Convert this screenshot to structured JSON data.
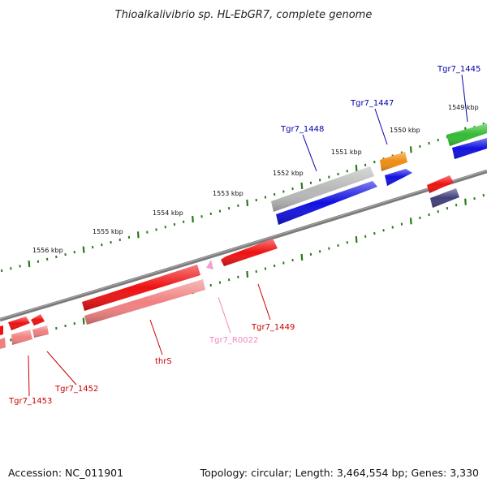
{
  "title": "Thioalkalivibrio sp. HL-EbGR7, complete genome",
  "footer": {
    "accession": "Accession: NC_011901",
    "summary": "Topology: circular; Length: 3,464,554 bp; Genes: 3,330"
  },
  "ticks": [
    {
      "label": "1549 kbp"
    },
    {
      "label": "1550 kbp"
    },
    {
      "label": "1551 kbp"
    },
    {
      "label": "1552 kbp"
    },
    {
      "label": "1553 kbp"
    },
    {
      "label": "1554 kbp"
    },
    {
      "label": "1555 kbp"
    },
    {
      "label": "1556 kbp"
    }
  ],
  "genes": [
    {
      "id": "Tgr7_1445",
      "label": "Tgr7_1445",
      "color": "#0000aa"
    },
    {
      "id": "Tgr7_1447",
      "label": "Tgr7_1447",
      "color": "#0000aa"
    },
    {
      "id": "Tgr7_1448",
      "label": "Tgr7_1448",
      "color": "#0000aa"
    },
    {
      "id": "Tgr7_1449",
      "label": "Tgr7_1449",
      "color": "#cc0000"
    },
    {
      "id": "Tgr7_R0022",
      "label": "Tgr7_R0022",
      "color": "#ee88bb"
    },
    {
      "id": "thrS",
      "label": "thrS",
      "color": "#cc0000"
    },
    {
      "id": "Tgr7_1452",
      "label": "Tgr7_1452",
      "color": "#cc0000"
    },
    {
      "id": "Tgr7_1453",
      "label": "Tgr7_1453",
      "color": "#cc0000"
    }
  ],
  "colors": {
    "backbone": "#808080",
    "tick": "#2a7a1a",
    "feature_red": "#ee1111",
    "feature_pink": "#f08080",
    "feature_blue": "#1010e0",
    "feature_gray": "#b8b8b8",
    "feature_green": "#33bb33",
    "feature_orange": "#f08c10",
    "feature_navy": "#40407a",
    "feature_rrna": "#f0a0d0"
  }
}
